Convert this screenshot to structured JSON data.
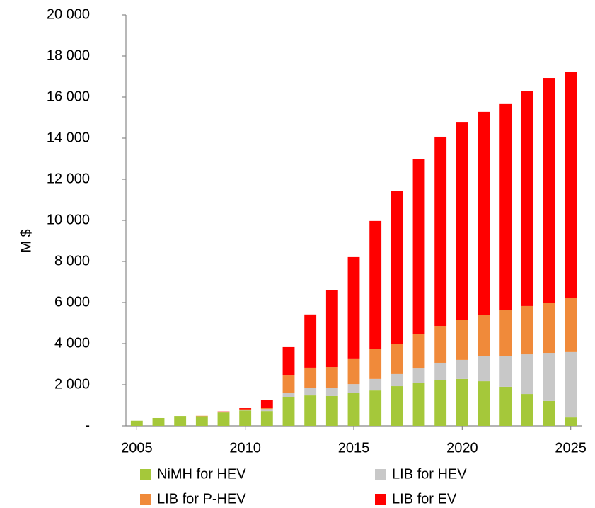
{
  "chart_data": {
    "type": "stacked_bar",
    "y_label": "M $",
    "x": [
      2005,
      2006,
      2007,
      2008,
      2009,
      2010,
      2011,
      2012,
      2013,
      2014,
      2015,
      2016,
      2017,
      2018,
      2019,
      2020,
      2021,
      2022,
      2023,
      2024,
      2025
    ],
    "xlim": [
      2004.5,
      2025.5
    ],
    "xticks": [
      2005,
      2010,
      2015,
      2020,
      2025
    ],
    "ylim": [
      0,
      20000
    ],
    "yticks": [
      {
        "value": 0,
        "label": "-"
      },
      {
        "value": 2000,
        "label": "2 000"
      },
      {
        "value": 4000,
        "label": "4 000"
      },
      {
        "value": 6000,
        "label": "6 000"
      },
      {
        "value": 8000,
        "label": "8 000"
      },
      {
        "value": 10000,
        "label": "10 000"
      },
      {
        "value": 12000,
        "label": "12 000"
      },
      {
        "value": 14000,
        "label": "14 000"
      },
      {
        "value": 16000,
        "label": "16 000"
      },
      {
        "value": 18000,
        "label": "18 000"
      },
      {
        "value": 20000,
        "label": "20 000"
      }
    ],
    "grid": false,
    "series": [
      {
        "name": "NiMH for HEV",
        "color": "#a5c83a",
        "values": [
          250,
          380,
          480,
          470,
          650,
          750,
          720,
          1380,
          1480,
          1450,
          1590,
          1720,
          1930,
          2100,
          2210,
          2280,
          2170,
          1900,
          1550,
          1210,
          410
        ]
      },
      {
        "name": "LIB for HEV",
        "color": "#c8c8c8",
        "values": [
          0,
          0,
          0,
          0,
          0,
          30,
          100,
          220,
          350,
          410,
          440,
          560,
          590,
          690,
          860,
          930,
          1210,
          1480,
          1930,
          2340,
          3180
        ]
      },
      {
        "name": "LIB for P-HEV",
        "color": "#f08a3a",
        "values": [
          0,
          0,
          0,
          20,
          30,
          30,
          40,
          880,
          1000,
          1000,
          1250,
          1450,
          1480,
          1660,
          1790,
          1930,
          2030,
          2240,
          2350,
          2450,
          2620
        ]
      },
      {
        "name": "LIB for EV",
        "color": "#ff0000",
        "values": [
          0,
          0,
          0,
          0,
          20,
          50,
          390,
          1350,
          2590,
          3730,
          4930,
          6240,
          7420,
          8520,
          9210,
          9650,
          9870,
          10040,
          10480,
          10930,
          11000
        ]
      }
    ]
  }
}
